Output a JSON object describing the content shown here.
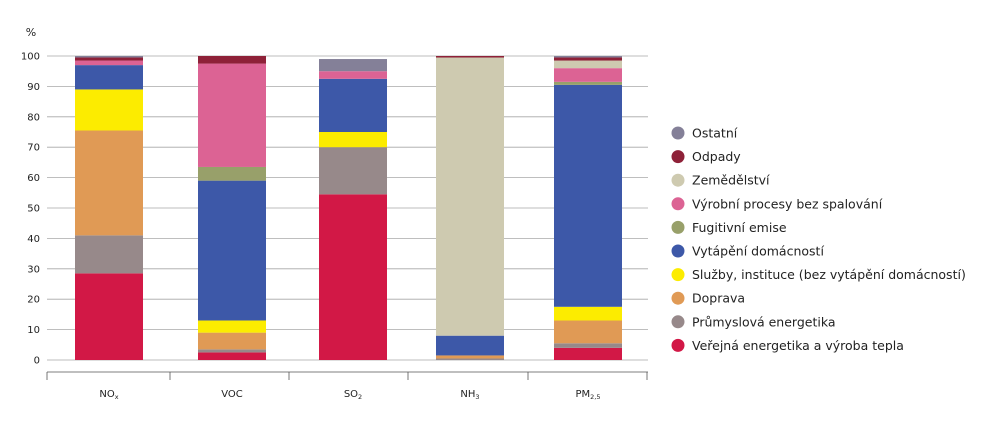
{
  "chart_data": {
    "type": "bar",
    "stacked": true,
    "ylabel": "%",
    "ylim": [
      0,
      100
    ],
    "yticks": [
      0,
      10,
      20,
      30,
      40,
      50,
      60,
      70,
      80,
      90,
      100
    ],
    "grid": true,
    "legend_position": "right",
    "categories": [
      {
        "base": "NO",
        "sub": "x"
      },
      {
        "base": "VOC",
        "sub": ""
      },
      {
        "base": "SO",
        "sub": "2"
      },
      {
        "base": "NH",
        "sub": "3"
      },
      {
        "base": "PM",
        "sub": "2,5"
      }
    ],
    "series": [
      {
        "name": "Veřejná energetika a výroba tepla",
        "color": "#d21846",
        "values": [
          28.5,
          2.5,
          54.5,
          0.0,
          4.0
        ]
      },
      {
        "name": "Průmyslová energetika",
        "color": "#97898a",
        "values": [
          12.5,
          1.0,
          15.5,
          0.5,
          1.5
        ]
      },
      {
        "name": "Doprava",
        "color": "#e09a55",
        "values": [
          34.5,
          5.5,
          0.0,
          1.0,
          7.5
        ]
      },
      {
        "name": "Služby, instituce (bez vytápění domácností)",
        "color": "#fcec00",
        "values": [
          13.5,
          4.0,
          5.0,
          0.0,
          4.5
        ]
      },
      {
        "name": "Vytápění domácností",
        "color": "#3d58a8",
        "values": [
          8.0,
          46.0,
          17.5,
          6.5,
          73.0
        ]
      },
      {
        "name": "Fugitivní emise",
        "color": "#98a06a",
        "values": [
          0.0,
          4.5,
          0.0,
          0.0,
          1.0
        ]
      },
      {
        "name": "Výrobní procesy bez spalování",
        "color": "#dc6394",
        "values": [
          1.5,
          34.0,
          2.5,
          0.0,
          4.5
        ]
      },
      {
        "name": "Zemědělství",
        "color": "#cecab0",
        "values": [
          0.0,
          0.0,
          0.0,
          91.5,
          2.5
        ]
      },
      {
        "name": "Odpady",
        "color": "#8e2138",
        "values": [
          1.0,
          2.5,
          0.0,
          0.5,
          1.0
        ]
      },
      {
        "name": "Ostatní",
        "color": "#848098",
        "values": [
          0.5,
          0.0,
          4.0,
          0.0,
          0.5
        ]
      }
    ]
  }
}
